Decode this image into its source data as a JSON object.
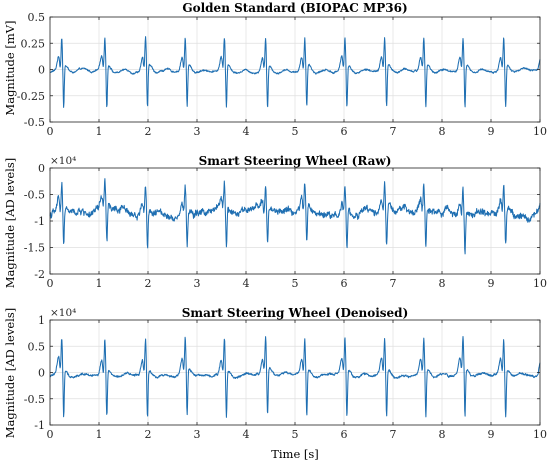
{
  "colors": {
    "trace": "#1f6fb2"
  },
  "chart_data": [
    {
      "type": "line",
      "title": "Golden Standard (BIOPAC MP36)",
      "xlabel": "",
      "ylabel": "Magnitude [mV]",
      "exponent_label": "",
      "xlim": [
        0,
        10
      ],
      "ylim": [
        -0.5,
        0.5
      ],
      "xticks": [
        0,
        1,
        2,
        3,
        4,
        5,
        6,
        7,
        8,
        9,
        10
      ],
      "yticks": [
        -0.5,
        -0.25,
        0,
        0.25,
        0.5
      ],
      "ytick_labels": [
        "-0.5",
        "-0.25",
        "0",
        "0.25",
        "0.5"
      ],
      "grid": true,
      "series": [
        {
          "beats_s": [
            0.24,
            1.12,
            1.95,
            2.76,
            3.56,
            4.4,
            5.2,
            6.02,
            6.83,
            7.63,
            8.43,
            9.26,
            10.08
          ],
          "r_peak": 0.28,
          "s_trough": -0.38,
          "t_wave": 0.2,
          "baseline": -0.03,
          "noise": 0.012
        }
      ]
    },
    {
      "type": "line",
      "title": "Smart Steering Wheel (Raw)",
      "xlabel": "",
      "ylabel": "Magnitude [AD levels]",
      "exponent_label": "×10⁴",
      "xlim": [
        0,
        10
      ],
      "ylim": [
        -2,
        0
      ],
      "xticks": [
        0,
        1,
        2,
        3,
        4,
        5,
        6,
        7,
        8,
        9,
        10
      ],
      "yticks": [
        -2,
        -1.5,
        -1,
        -0.5,
        0
      ],
      "ytick_labels": [
        "-2",
        "-1.5",
        "-1",
        "-0.5",
        "0"
      ],
      "grid": true,
      "series": [
        {
          "beats_s": [
            0.24,
            1.12,
            1.95,
            2.76,
            3.56,
            4.4,
            5.2,
            6.02,
            6.83,
            7.63,
            8.43,
            9.26,
            10.08
          ],
          "r_peak": 0.5,
          "s_trough": -0.65,
          "t_wave": 0.3,
          "baseline": -0.88,
          "noise": 0.09
        }
      ]
    },
    {
      "type": "line",
      "title": "Smart Steering Wheel (Denoised)",
      "xlabel": "Time [s]",
      "ylabel": "Magnitude [AD levels]",
      "exponent_label": "×10⁴",
      "xlim": [
        0,
        10
      ],
      "ylim": [
        -1,
        1
      ],
      "xticks": [
        0,
        1,
        2,
        3,
        4,
        5,
        6,
        7,
        8,
        9,
        10
      ],
      "yticks": [
        -1,
        -0.5,
        0,
        0.5,
        1
      ],
      "ytick_labels": [
        "-1",
        "-0.5",
        "0",
        "0.5",
        "1"
      ],
      "grid": true,
      "series": [
        {
          "beats_s": [
            0.24,
            1.12,
            1.95,
            2.76,
            3.56,
            4.4,
            5.2,
            6.02,
            6.83,
            7.63,
            8.43,
            9.26,
            10.08
          ],
          "r_peak": 0.62,
          "s_trough": -0.85,
          "t_wave": 0.35,
          "baseline": -0.08,
          "noise": 0.03
        }
      ]
    }
  ]
}
